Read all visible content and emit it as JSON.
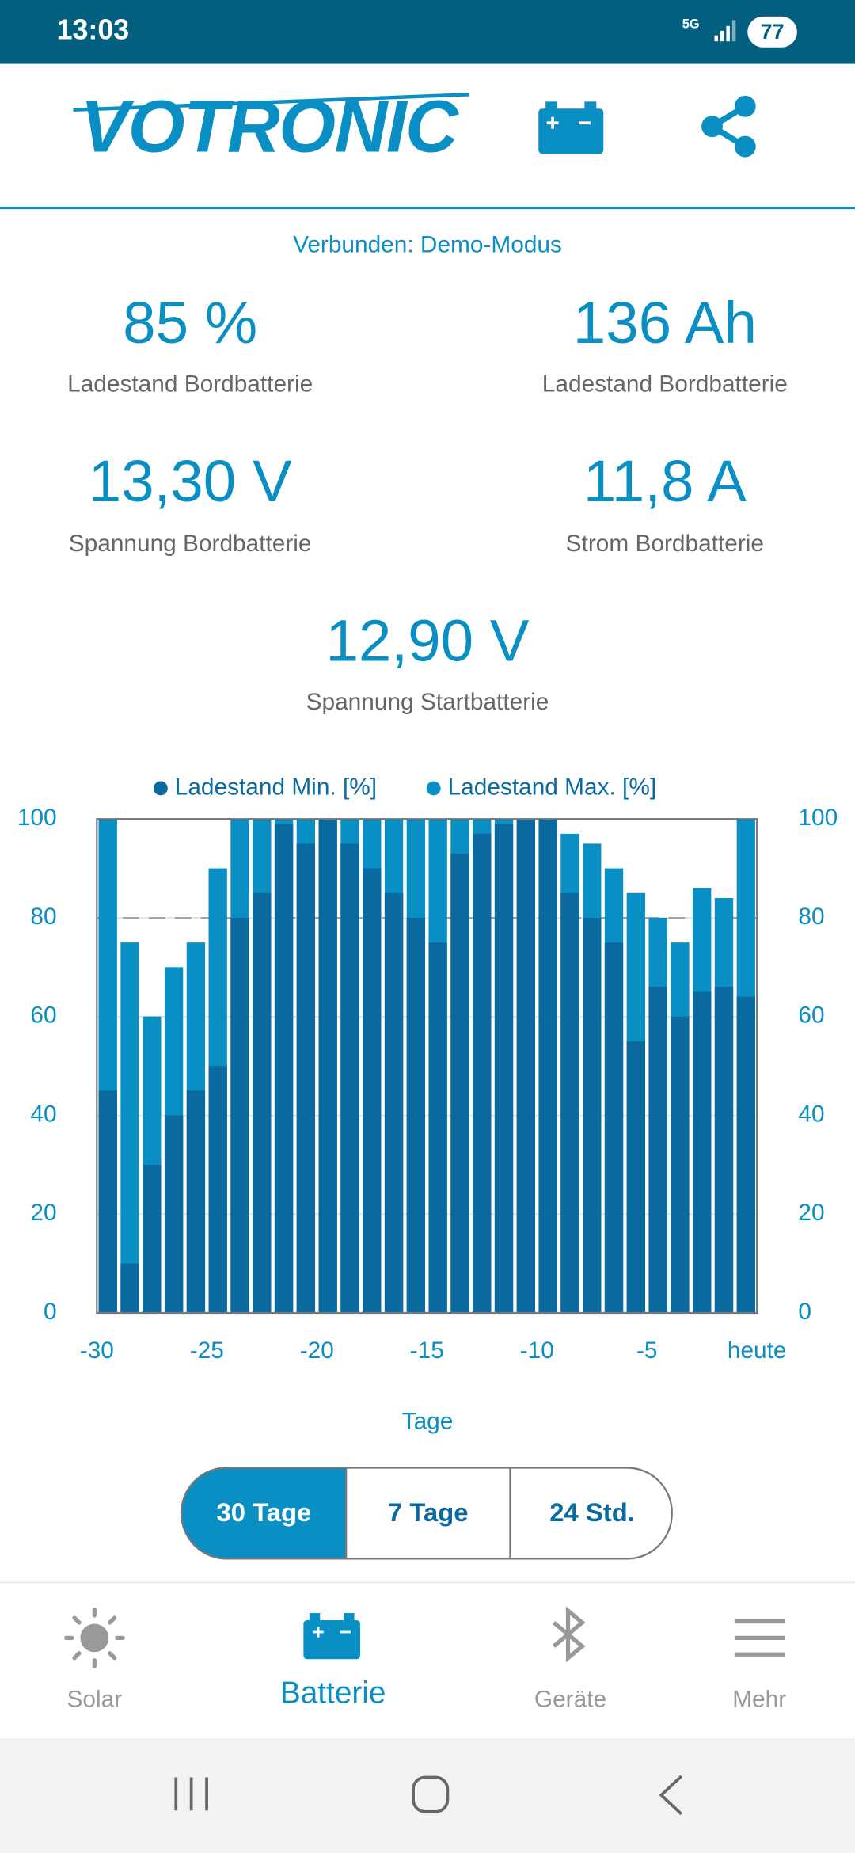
{
  "status_bar": {
    "time": "13:03",
    "network": "5G",
    "battery": "77"
  },
  "header": {
    "logo": "VOTRONIC"
  },
  "connection": "Verbunden: Demo-Modus",
  "stats": [
    {
      "value": "85 %",
      "label": "Ladestand Bordbatterie"
    },
    {
      "value": "136 Ah",
      "label": "Ladestand Bordbatterie"
    },
    {
      "value": "13,30 V",
      "label": "Spannung Bordbatterie"
    },
    {
      "value": "11,8 A",
      "label": "Strom Bordbatterie"
    },
    {
      "value": "12,90 V",
      "label": "Spannung Startbatterie"
    }
  ],
  "chart_data": {
    "type": "bar",
    "x_label": "Tage",
    "x": [
      -30,
      -29,
      -28,
      -27,
      -26,
      -25,
      -24,
      -23,
      -22,
      -21,
      -20,
      -19,
      -18,
      -17,
      -16,
      -15,
      -14,
      -13,
      -12,
      -11,
      -10,
      -9,
      -8,
      -7,
      -6,
      -5,
      -4,
      -3,
      -2,
      -1
    ],
    "series": [
      {
        "name": "Ladestand Max. [%]",
        "color": "#0a8fc4",
        "values": [
          100,
          75,
          60,
          70,
          75,
          90,
          100,
          100,
          100,
          100,
          100,
          100,
          100,
          100,
          100,
          100,
          100,
          100,
          100,
          100,
          100,
          97,
          95,
          90,
          85,
          80,
          75,
          86,
          84,
          100
        ]
      },
      {
        "name": "Ladestand Min. [%]",
        "color": "#0a6aa0",
        "values": [
          45,
          10,
          30,
          40,
          45,
          50,
          80,
          85,
          99,
          95,
          100,
          95,
          90,
          85,
          80,
          75,
          93,
          97,
          99,
          100,
          100,
          85,
          80,
          75,
          55,
          66,
          60,
          65,
          66,
          64
        ]
      }
    ],
    "legend_order": [
      1,
      0
    ],
    "xlim": [
      -30,
      0
    ],
    "xticks": [
      -30,
      -25,
      -20,
      -15,
      -10,
      -5,
      {
        "value": 0,
        "label": "heute"
      }
    ],
    "ylim": [
      0,
      100
    ],
    "yticks": [
      0,
      20,
      40,
      60,
      80,
      100
    ],
    "y2lim": [
      0,
      100
    ],
    "y2ticks": [
      0,
      20,
      40,
      60,
      80,
      100
    ],
    "grid": true,
    "reference_line": 80
  },
  "range_buttons": {
    "options": [
      "30 Tage",
      "7 Tage",
      "24 Std."
    ],
    "selected": 0
  },
  "nav": {
    "items": [
      "Solar",
      "Batterie",
      "Geräte",
      "Mehr"
    ],
    "active": 1
  }
}
